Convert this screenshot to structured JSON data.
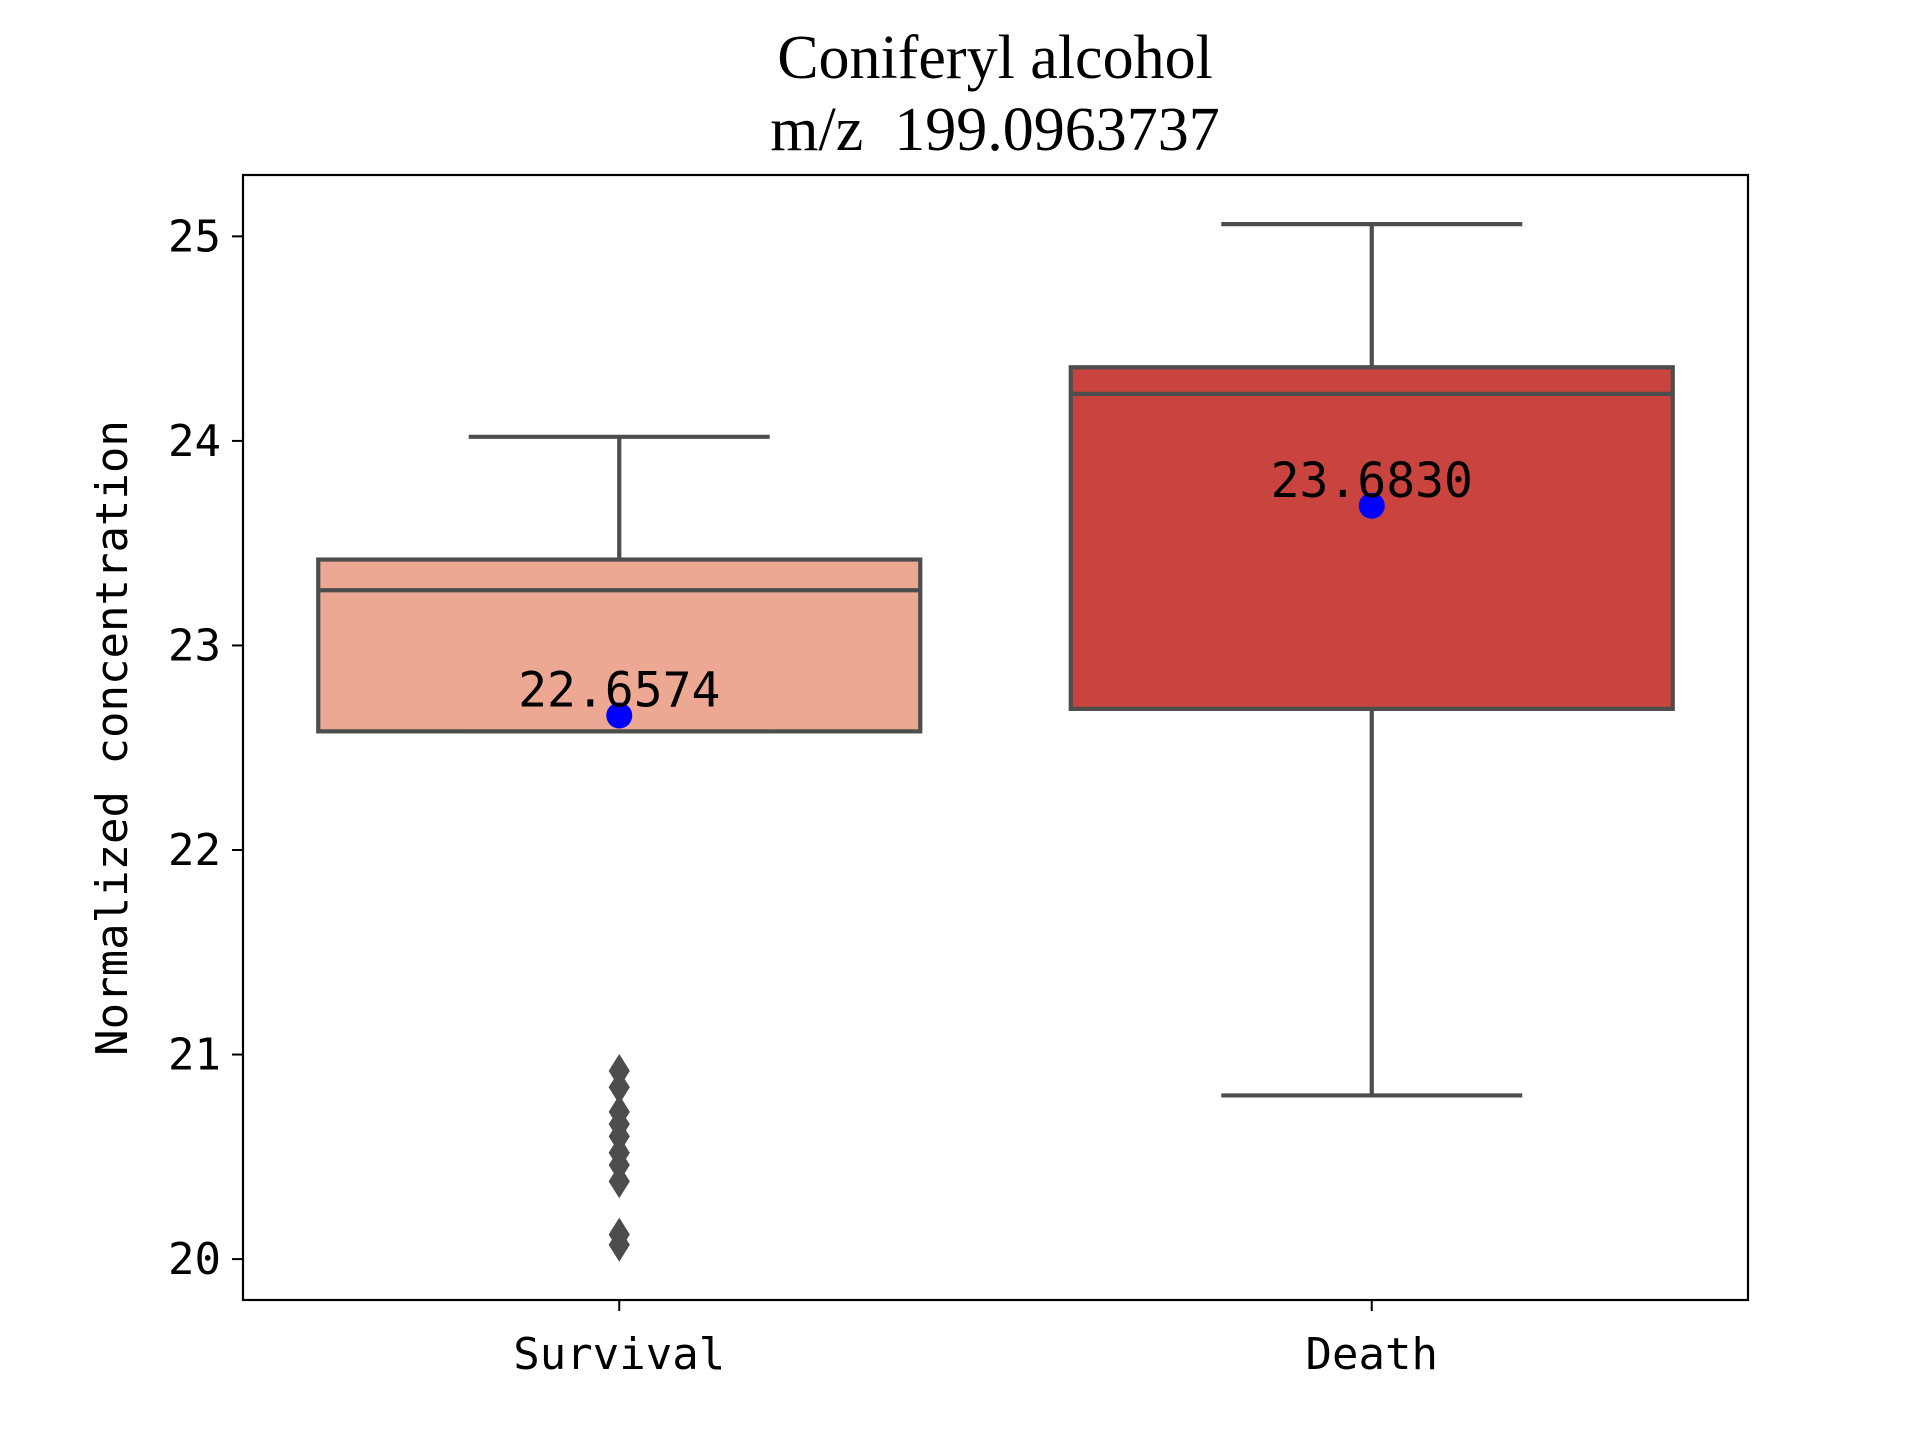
{
  "chart_data": {
    "type": "box",
    "title": "Coniferyl alcohol",
    "subtitle": "m/z  199.0963737",
    "xlabel": "",
    "ylabel": "Normalized concentration",
    "ylim": [
      19.8,
      25.3
    ],
    "yticks": [
      20,
      21,
      22,
      23,
      24,
      25
    ],
    "grid": false,
    "legend": "none",
    "categories": [
      "Survival",
      "Death"
    ],
    "series": [
      {
        "category": "Survival",
        "color": "#eca893",
        "whisker_low": 22.58,
        "q1": 22.58,
        "median": 23.27,
        "q3": 23.42,
        "whisker_high": 24.02,
        "mean": 22.6574,
        "mean_label": "22.6574",
        "outliers": [
          20.07,
          20.12,
          20.38,
          20.46,
          20.52,
          20.6,
          20.66,
          20.72,
          20.84,
          20.92
        ]
      },
      {
        "category": "Death",
        "color": "#c9443e",
        "whisker_low": 20.8,
        "q1": 22.69,
        "median": 24.23,
        "q3": 24.36,
        "whisker_high": 25.06,
        "mean": 23.683,
        "mean_label": "23.6830",
        "outliers": []
      }
    ],
    "box_edge_color": "#4d4d4d",
    "mean_marker_color": "#0000ff"
  }
}
